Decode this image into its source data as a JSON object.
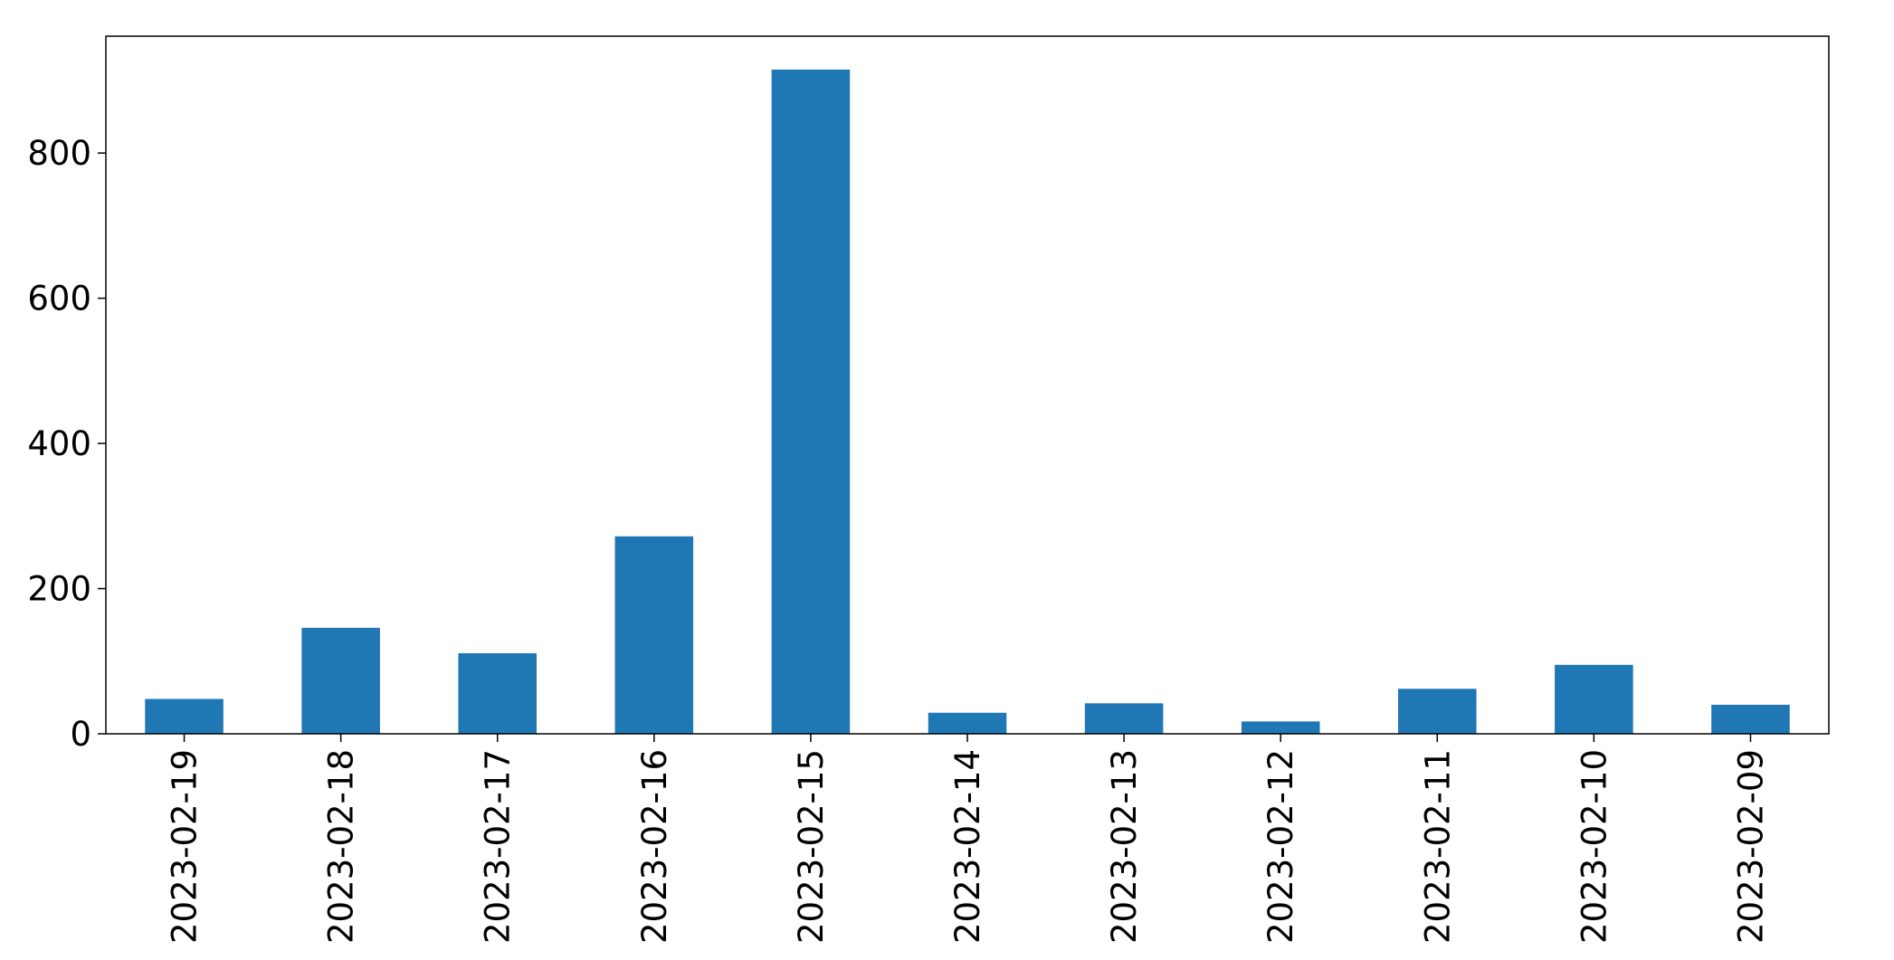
{
  "chart_data": {
    "type": "bar",
    "title": "",
    "xlabel": "",
    "ylabel": "",
    "categories": [
      "2023-02-19",
      "2023-02-18",
      "2023-02-17",
      "2023-02-16",
      "2023-02-15",
      "2023-02-14",
      "2023-02-13",
      "2023-02-12",
      "2023-02-11",
      "2023-02-10",
      "2023-02-09"
    ],
    "values": [
      48,
      146,
      111,
      272,
      915,
      29,
      42,
      17,
      62,
      95,
      40
    ],
    "ylim": [
      0,
      961
    ],
    "yticks": [
      0,
      200,
      400,
      600,
      800
    ],
    "grid": false,
    "legend": "none",
    "bar_color": "#1f77b4"
  }
}
